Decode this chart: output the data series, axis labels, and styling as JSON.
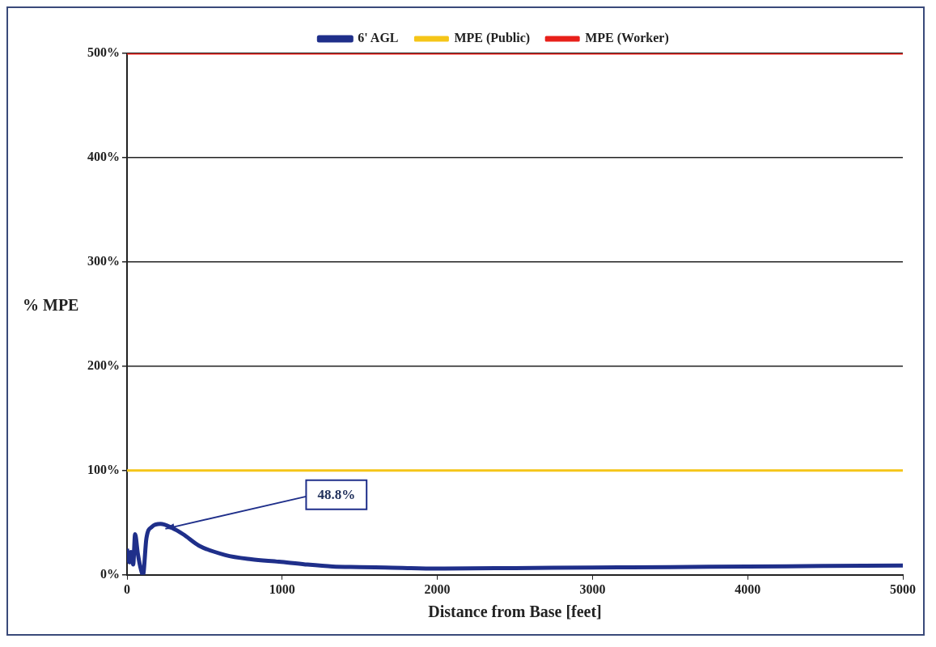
{
  "chart_data": {
    "type": "line",
    "xlabel": "Distance from Base [feet]",
    "ylabel": "% MPE",
    "xlim": [
      0,
      5000
    ],
    "xticks": [
      0,
      1000,
      2000,
      3000,
      4000,
      5000
    ],
    "ylim": [
      0,
      500
    ],
    "yticks": [
      {
        "value": 0,
        "label": "0%"
      },
      {
        "value": 100,
        "label": "100%"
      },
      {
        "value": 200,
        "label": "200%"
      },
      {
        "value": 300,
        "label": "300%"
      },
      {
        "value": 400,
        "label": "400%"
      },
      {
        "value": 500,
        "label": "500%"
      }
    ],
    "grid": "y",
    "legend": "top",
    "marker": "none",
    "line_style": "solid",
    "series": [
      {
        "name": "6' AGL",
        "color": "#1f2f8a",
        "x": [
          0,
          15,
          25,
          40,
          52,
          70,
          90,
          103,
          125,
          160,
          216,
          290,
          361,
          464,
          634,
          800,
          979,
          1150,
          1325,
          1500,
          1665,
          2000,
          2500,
          3000,
          3500,
          4000,
          4500,
          5000
        ],
        "values": [
          25,
          12,
          22,
          10,
          39,
          20,
          5,
          0,
          35,
          46,
          48.8,
          45,
          39,
          28,
          19,
          15,
          12.6,
          10,
          8,
          7.5,
          7,
          6,
          6.5,
          7,
          7.5,
          8,
          8.5,
          9
        ]
      },
      {
        "name": "MPE (Public)",
        "color": "#f5c518",
        "x": [
          0,
          5000
        ],
        "values": [
          100,
          100
        ]
      },
      {
        "name": "MPE (Worker)",
        "color": "#e8201a",
        "x": [
          0,
          5000
        ],
        "values": [
          500,
          500
        ]
      }
    ],
    "annotations": [
      {
        "text": "48.8%",
        "x": 216,
        "y": 48.8
      }
    ]
  }
}
